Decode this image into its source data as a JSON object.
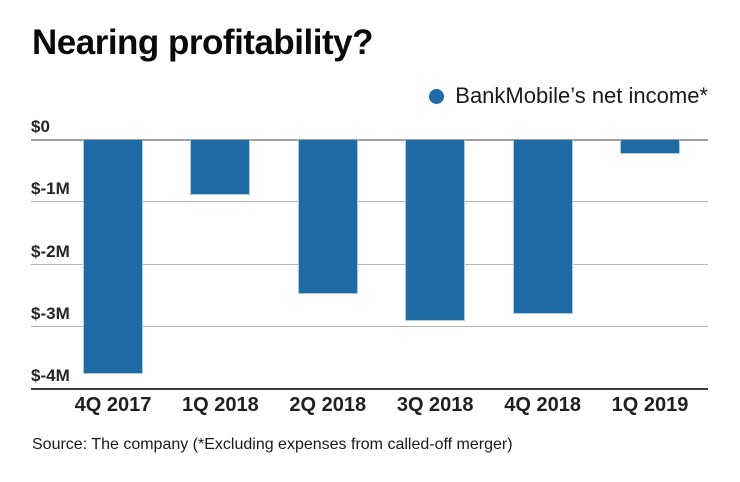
{
  "title": "Nearing profitability?",
  "legend": {
    "label": "BankMobile’s net income*",
    "marker_color": "#1e6ba6"
  },
  "source": "Source: The company (*Excluding expenses from called-off merger)",
  "colors": {
    "bar": "#1e6ba6",
    "gridline": "#b5b5b5",
    "zero_line": "#9e9e9e",
    "baseline": "#3d3d3d"
  },
  "chart_data": {
    "type": "bar",
    "title": "Nearing profitability?",
    "series_name": "BankMobile’s net income*",
    "categories": [
      "4Q 2017",
      "1Q 2018",
      "2Q 2018",
      "3Q 2018",
      "4Q 2018",
      "1Q 2019"
    ],
    "values": [
      -3.76,
      -0.88,
      -2.47,
      -2.9,
      -2.8,
      -0.23
    ],
    "unit": "USD millions",
    "y_ticks": [
      "$0",
      "$-1M",
      "$-2M",
      "$-3M",
      "$-4M"
    ],
    "y_tick_values": [
      0,
      -1,
      -2,
      -3,
      -4
    ],
    "ylim": [
      -4,
      0
    ],
    "xlabel": "",
    "ylabel": "",
    "grid": true,
    "legend_position": "top-right",
    "bar_color": "#1e6ba6"
  }
}
